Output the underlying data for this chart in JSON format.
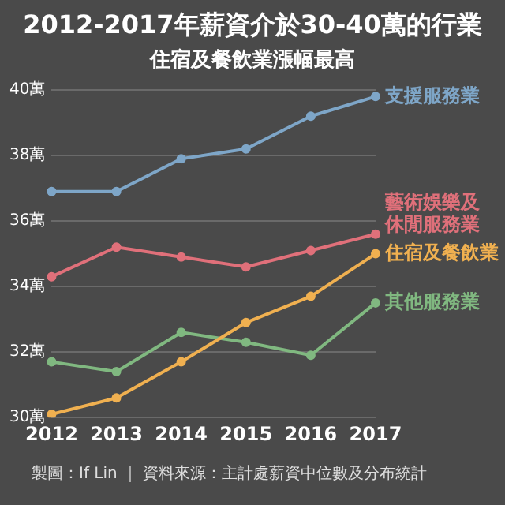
{
  "chart_data": {
    "type": "line",
    "title": "2012-2017年薪資介於30-40萬的行業",
    "subtitle": "住宿及餐飲業漲幅最高",
    "categories": [
      "2012",
      "2013",
      "2014",
      "2015",
      "2016",
      "2017"
    ],
    "series": [
      {
        "name": "支援服務業",
        "color": "#7ea6c8",
        "values": [
          36.9,
          36.9,
          37.9,
          38.2,
          39.2,
          39.8
        ]
      },
      {
        "name": "藝術娛樂及休閒服務業",
        "color": "#e0707a",
        "values": [
          34.3,
          35.2,
          34.9,
          34.6,
          35.1,
          35.6
        ]
      },
      {
        "name": "住宿及餐飲業",
        "color": "#f0b050",
        "values": [
          30.1,
          30.6,
          31.7,
          32.9,
          33.7,
          35.0
        ]
      },
      {
        "name": "其他服務業",
        "color": "#80b880",
        "values": [
          31.7,
          31.4,
          32.6,
          32.3,
          31.9,
          33.5
        ]
      }
    ],
    "ylim": [
      30,
      40
    ],
    "yticks": [
      {
        "value": 30,
        "label": "30萬"
      },
      {
        "value": 32,
        "label": "32萬"
      },
      {
        "value": 34,
        "label": "34萬"
      },
      {
        "value": 36,
        "label": "36萬"
      },
      {
        "value": 38,
        "label": "38萬"
      },
      {
        "value": 40,
        "label": "40萬"
      }
    ],
    "grid": "y",
    "legend": false,
    "marker": "circle",
    "line_style": "solid",
    "annotations": [
      "製圖：If Lin ｜ 資料來源：主計處薪資中位數及分布統計"
    ]
  }
}
